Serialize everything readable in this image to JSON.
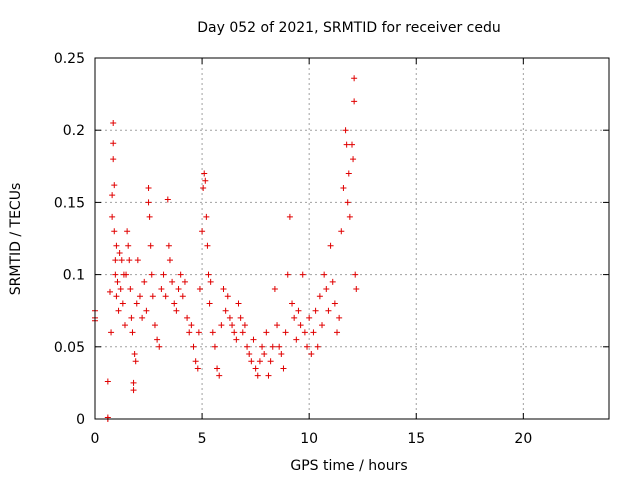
{
  "chart_data": {
    "type": "scatter",
    "title": "Day 052 of 2021, SRMTID for receiver cedu",
    "xlabel": "GPS time / hours",
    "ylabel": "SRMTID / TECUs",
    "xlim": [
      0,
      24
    ],
    "ylim": [
      0,
      0.25
    ],
    "x_ticks": [
      0,
      5,
      10,
      15,
      20
    ],
    "x_tick_labels": [
      "0",
      "5",
      "10",
      "15",
      "20"
    ],
    "y_ticks": [
      0,
      0.05,
      0.1,
      0.15,
      0.2,
      0.25
    ],
    "y_tick_labels": [
      "0",
      "0.05",
      "0.1",
      "0.15",
      "0.2",
      "0.25"
    ],
    "grid": true,
    "marker": "+",
    "color": "#e00000",
    "points": [
      [
        0.0,
        0.075
      ],
      [
        0.0,
        0.07
      ],
      [
        0.0,
        0.068
      ],
      [
        0.6,
        0.026
      ],
      [
        0.6,
        0.001
      ],
      [
        0.6,
        0.0
      ],
      [
        0.7,
        0.088
      ],
      [
        0.75,
        0.06
      ],
      [
        0.8,
        0.14
      ],
      [
        0.8,
        0.155
      ],
      [
        0.85,
        0.205
      ],
      [
        0.85,
        0.191
      ],
      [
        0.85,
        0.18
      ],
      [
        0.9,
        0.162
      ],
      [
        0.9,
        0.13
      ],
      [
        0.95,
        0.11
      ],
      [
        0.95,
        0.1
      ],
      [
        1.0,
        0.12
      ],
      [
        1.0,
        0.085
      ],
      [
        1.05,
        0.095
      ],
      [
        1.1,
        0.075
      ],
      [
        1.15,
        0.115
      ],
      [
        1.2,
        0.09
      ],
      [
        1.25,
        0.11
      ],
      [
        1.3,
        0.08
      ],
      [
        1.35,
        0.1
      ],
      [
        1.4,
        0.065
      ],
      [
        1.45,
        0.1
      ],
      [
        1.5,
        0.13
      ],
      [
        1.55,
        0.12
      ],
      [
        1.6,
        0.11
      ],
      [
        1.65,
        0.09
      ],
      [
        1.7,
        0.07
      ],
      [
        1.75,
        0.06
      ],
      [
        1.8,
        0.025
      ],
      [
        1.8,
        0.02
      ],
      [
        1.85,
        0.045
      ],
      [
        1.9,
        0.04
      ],
      [
        1.95,
        0.08
      ],
      [
        2.0,
        0.11
      ],
      [
        2.1,
        0.085
      ],
      [
        2.2,
        0.07
      ],
      [
        2.3,
        0.095
      ],
      [
        2.4,
        0.075
      ],
      [
        2.5,
        0.16
      ],
      [
        2.5,
        0.15
      ],
      [
        2.55,
        0.14
      ],
      [
        2.6,
        0.12
      ],
      [
        2.65,
        0.1
      ],
      [
        2.7,
        0.085
      ],
      [
        2.8,
        0.065
      ],
      [
        2.9,
        0.055
      ],
      [
        3.0,
        0.05
      ],
      [
        3.1,
        0.09
      ],
      [
        3.2,
        0.1
      ],
      [
        3.3,
        0.085
      ],
      [
        3.4,
        0.152
      ],
      [
        3.45,
        0.12
      ],
      [
        3.5,
        0.11
      ],
      [
        3.6,
        0.095
      ],
      [
        3.7,
        0.08
      ],
      [
        3.8,
        0.075
      ],
      [
        3.9,
        0.09
      ],
      [
        4.0,
        0.1
      ],
      [
        4.1,
        0.085
      ],
      [
        4.2,
        0.095
      ],
      [
        4.3,
        0.07
      ],
      [
        4.4,
        0.06
      ],
      [
        4.5,
        0.065
      ],
      [
        4.6,
        0.05
      ],
      [
        4.7,
        0.04
      ],
      [
        4.8,
        0.035
      ],
      [
        4.85,
        0.06
      ],
      [
        4.9,
        0.09
      ],
      [
        5.0,
        0.13
      ],
      [
        5.05,
        0.16
      ],
      [
        5.1,
        0.17
      ],
      [
        5.15,
        0.165
      ],
      [
        5.2,
        0.14
      ],
      [
        5.25,
        0.12
      ],
      [
        5.3,
        0.1
      ],
      [
        5.35,
        0.08
      ],
      [
        5.4,
        0.095
      ],
      [
        5.5,
        0.06
      ],
      [
        5.6,
        0.05
      ],
      [
        5.7,
        0.035
      ],
      [
        5.8,
        0.03
      ],
      [
        5.9,
        0.065
      ],
      [
        6.0,
        0.09
      ],
      [
        6.1,
        0.075
      ],
      [
        6.2,
        0.085
      ],
      [
        6.3,
        0.07
      ],
      [
        6.4,
        0.065
      ],
      [
        6.5,
        0.06
      ],
      [
        6.6,
        0.055
      ],
      [
        6.7,
        0.08
      ],
      [
        6.8,
        0.07
      ],
      [
        6.9,
        0.06
      ],
      [
        7.0,
        0.065
      ],
      [
        7.1,
        0.05
      ],
      [
        7.2,
        0.045
      ],
      [
        7.3,
        0.04
      ],
      [
        7.4,
        0.055
      ],
      [
        7.5,
        0.035
      ],
      [
        7.6,
        0.03
      ],
      [
        7.7,
        0.04
      ],
      [
        7.8,
        0.05
      ],
      [
        7.9,
        0.045
      ],
      [
        8.0,
        0.06
      ],
      [
        8.1,
        0.03
      ],
      [
        8.2,
        0.04
      ],
      [
        8.3,
        0.05
      ],
      [
        8.4,
        0.09
      ],
      [
        8.5,
        0.065
      ],
      [
        8.6,
        0.05
      ],
      [
        8.7,
        0.045
      ],
      [
        8.8,
        0.035
      ],
      [
        8.9,
        0.06
      ],
      [
        9.0,
        0.1
      ],
      [
        9.1,
        0.14
      ],
      [
        9.2,
        0.08
      ],
      [
        9.3,
        0.07
      ],
      [
        9.4,
        0.055
      ],
      [
        9.5,
        0.075
      ],
      [
        9.6,
        0.065
      ],
      [
        9.7,
        0.1
      ],
      [
        9.8,
        0.06
      ],
      [
        9.9,
        0.05
      ],
      [
        10.0,
        0.07
      ],
      [
        10.1,
        0.045
      ],
      [
        10.2,
        0.06
      ],
      [
        10.3,
        0.075
      ],
      [
        10.4,
        0.05
      ],
      [
        10.5,
        0.085
      ],
      [
        10.6,
        0.065
      ],
      [
        10.7,
        0.1
      ],
      [
        10.8,
        0.09
      ],
      [
        10.9,
        0.075
      ],
      [
        11.0,
        0.12
      ],
      [
        11.1,
        0.095
      ],
      [
        11.2,
        0.08
      ],
      [
        11.3,
        0.06
      ],
      [
        11.4,
        0.07
      ],
      [
        11.5,
        0.13
      ],
      [
        11.6,
        0.16
      ],
      [
        11.7,
        0.2
      ],
      [
        11.75,
        0.19
      ],
      [
        11.8,
        0.15
      ],
      [
        11.85,
        0.17
      ],
      [
        11.9,
        0.14
      ],
      [
        12.0,
        0.19
      ],
      [
        12.05,
        0.18
      ],
      [
        12.1,
        0.22
      ],
      [
        12.1,
        0.236
      ],
      [
        12.15,
        0.1
      ],
      [
        12.2,
        0.09
      ]
    ]
  }
}
